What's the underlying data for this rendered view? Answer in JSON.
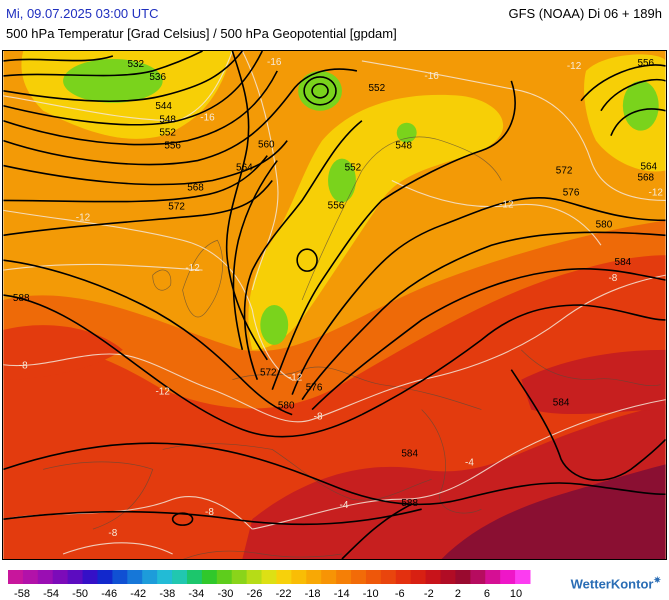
{
  "header": {
    "valid_time": "Mi, 09.07.2025 03:00 UTC",
    "model_run": "GFS (NOAA) Di 06 + 189h",
    "subtitle": "500 hPa Temperatur [Grad Celsius] / 500 hPa Geopotential [gpdam]"
  },
  "map": {
    "geopotential_labels": [
      "532",
      "536",
      "544",
      "548",
      "552",
      "556",
      "560",
      "564",
      "568",
      "572",
      "552",
      "548",
      "552",
      "556",
      "556",
      "564",
      "568",
      "572",
      "576",
      "580",
      "584",
      "588",
      "572",
      "576",
      "580",
      "584",
      "584",
      "588"
    ],
    "temperature_labels": [
      "-16",
      "-16",
      "-12",
      "-16",
      "-12",
      "-12",
      "-12",
      "-12",
      "-8",
      "-12",
      "-12",
      "-8",
      "-8",
      "-4",
      "-8",
      "-8",
      "-4"
    ],
    "colors": {
      "green": "#7ad31c",
      "yellow": "#f7cf06",
      "orange": "#f39a06",
      "deep_orange": "#ee6a08",
      "red": "#e33b0e",
      "dark_red": "#c71f1f",
      "maroon": "#8a0f32"
    }
  },
  "legend": {
    "ticks": [
      "-58",
      "-54",
      "-50",
      "-46",
      "-42",
      "-38",
      "-34",
      "-30",
      "-26",
      "-22",
      "-18",
      "-14",
      "-10",
      "-6",
      "-2",
      "2",
      "6",
      "10"
    ],
    "colors": [
      "#c8169c",
      "#b212a9",
      "#9a0eb3",
      "#7c0bb9",
      "#5c0cc0",
      "#3510c7",
      "#1228cc",
      "#1050d3",
      "#1677d8",
      "#1d9cda",
      "#22bbd6",
      "#21c7b0",
      "#1cc66c",
      "#30c82b",
      "#5ecd1c",
      "#8ad41a",
      "#b6dc17",
      "#dde014",
      "#f7d10b",
      "#f9bd05",
      "#f8a805",
      "#f79405",
      "#f57f06",
      "#f26b08",
      "#ee570a",
      "#e9450d",
      "#e3300f",
      "#d82012",
      "#c8131a",
      "#b10c25",
      "#990a2f",
      "#b60c5f",
      "#d50f94",
      "#ef16c8",
      "#fc3cf1"
    ],
    "brand": "WetterKontor"
  }
}
